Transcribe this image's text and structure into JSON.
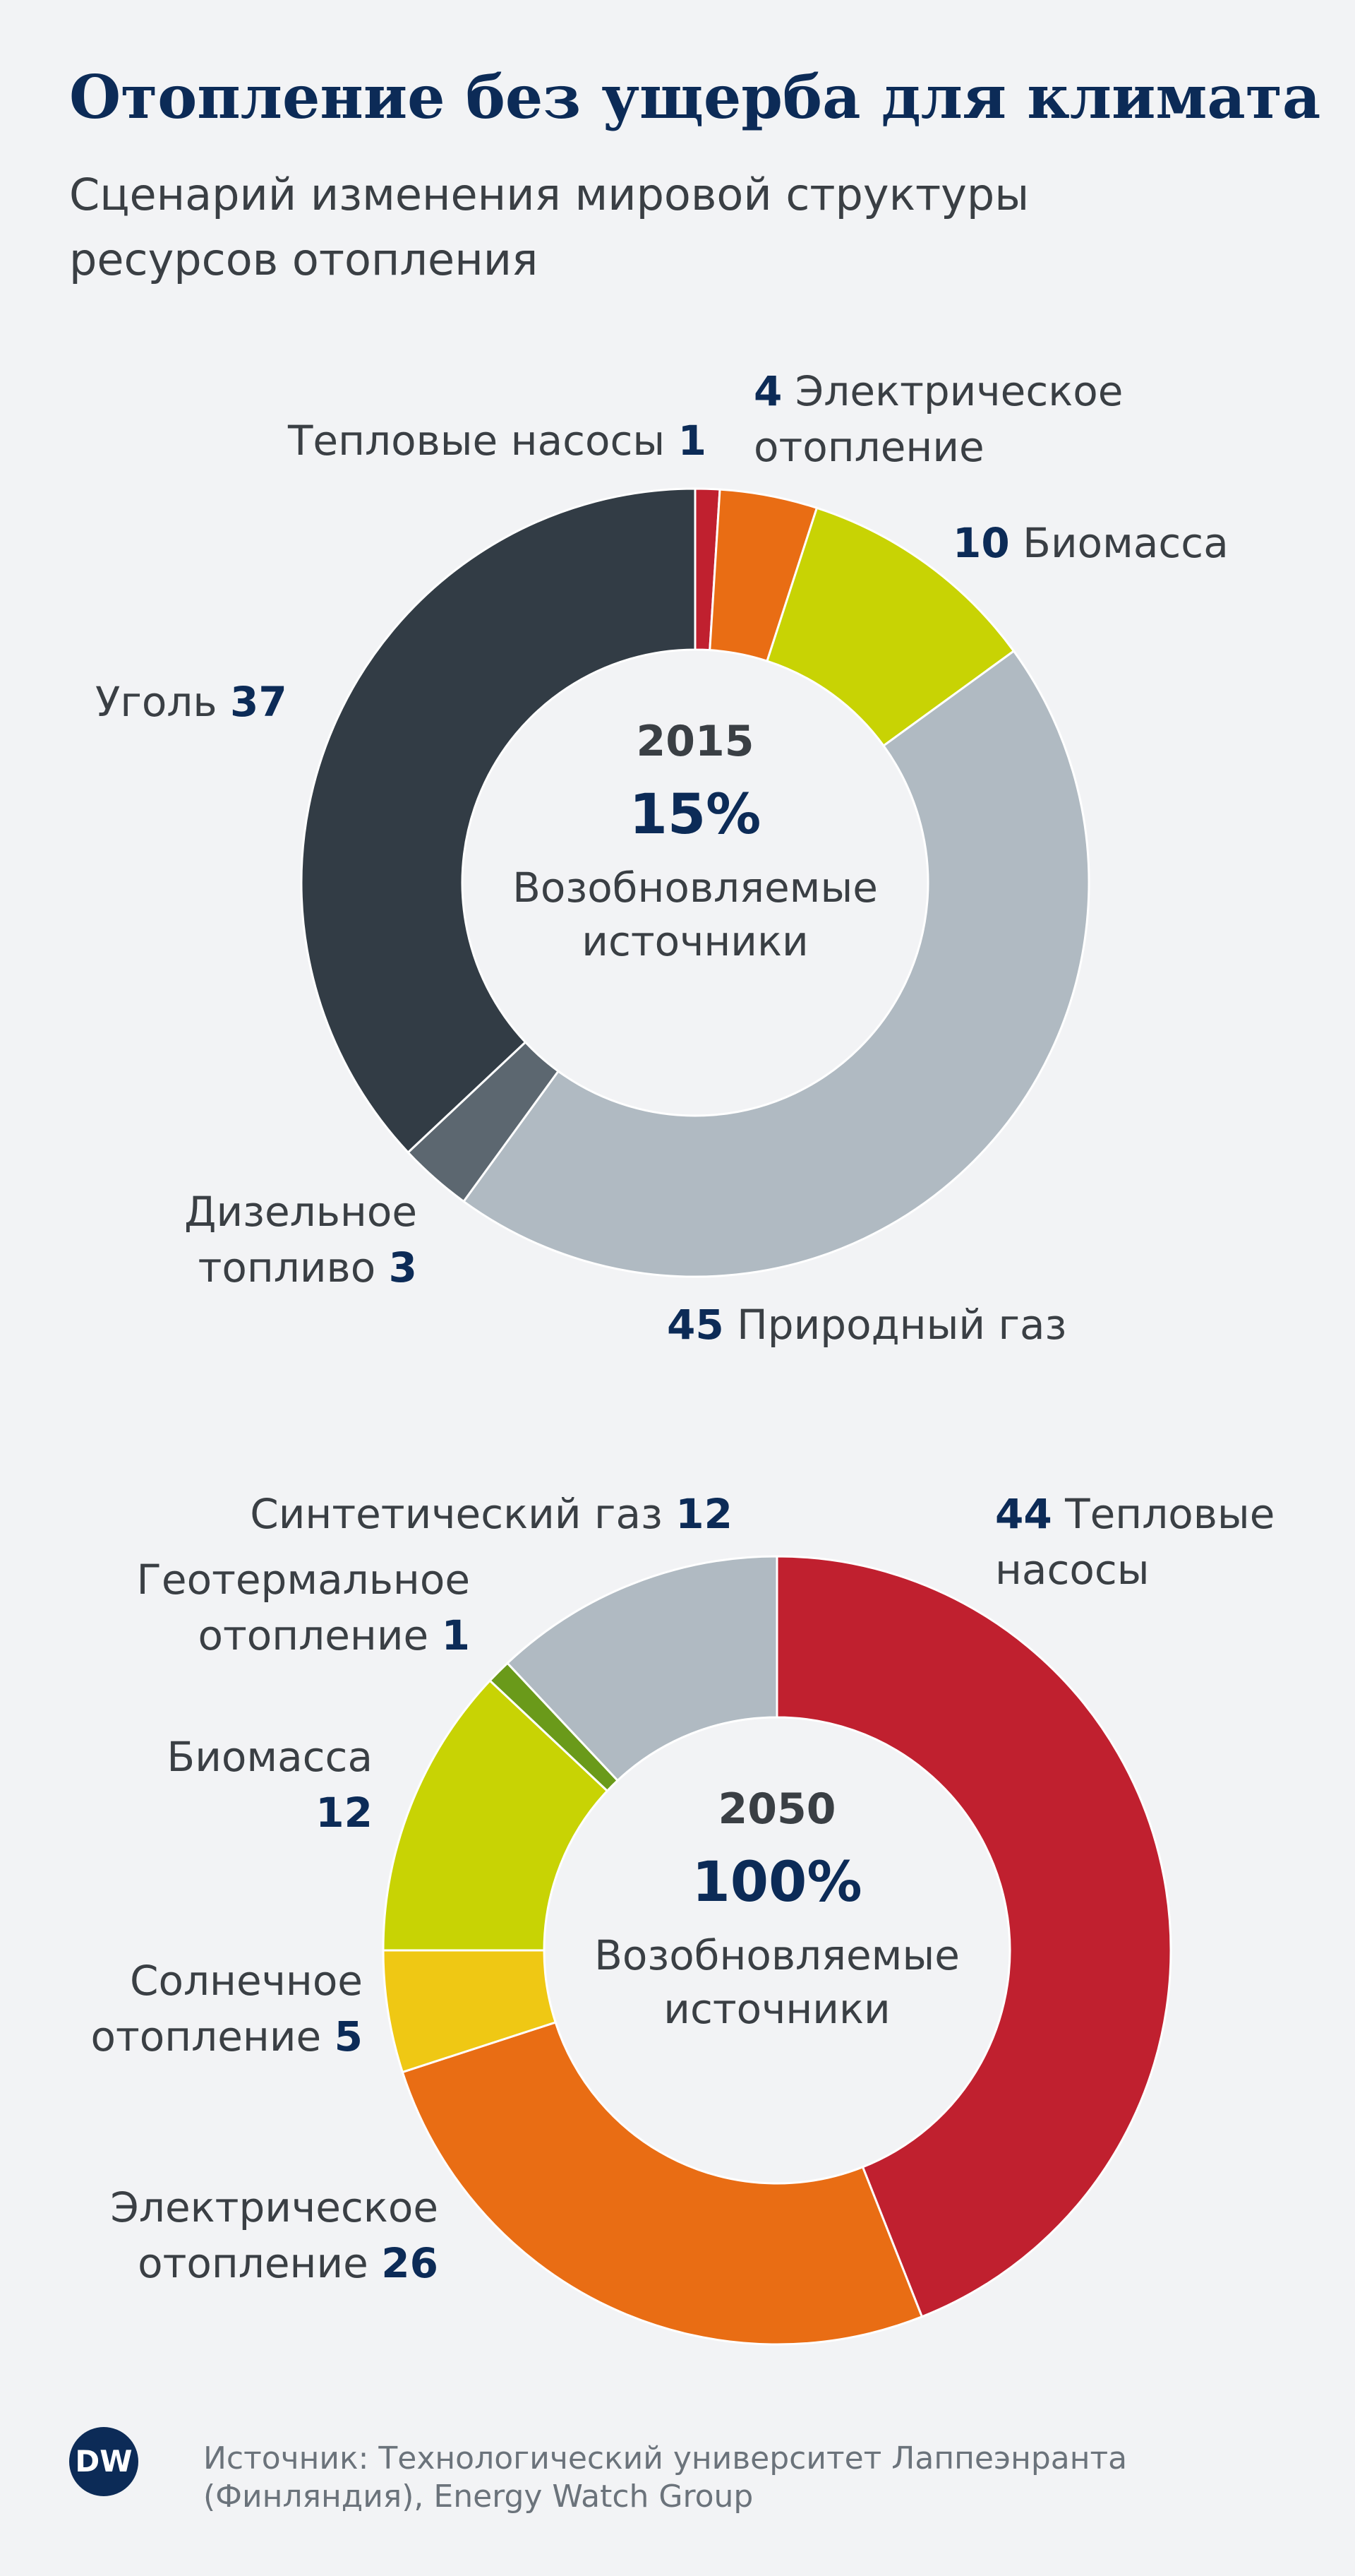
{
  "title": "Отопление без ущерба для климата",
  "subtitle": "Сценарий изменения мировой структуры ресурсов отопления",
  "source": "Источник: Технологический университет Лаппеэнранта (Финляндия), Energy Watch Group",
  "logo": "DW",
  "chart_data": [
    {
      "type": "donut",
      "center_year": "2015",
      "center_share": "15%",
      "center_label": "Возобновляемые источники",
      "categories": [
        "Тепловые насосы",
        "Электрическое отопление",
        "Биомасса",
        "Природный газ",
        "Дизельное топливо",
        "Уголь"
      ],
      "values": [
        1,
        4,
        10,
        45,
        3,
        37
      ],
      "colors": [
        "#c0202f",
        "#e96d14",
        "#c8d304",
        "#b0bac2",
        "#5c6770",
        "#323c45"
      ]
    },
    {
      "type": "donut",
      "center_year": "2050",
      "center_share": "100%",
      "center_label": "Возобновляемые источники",
      "categories": [
        "Тепловые насосы",
        "Электрическое отопление",
        "Солнечное отопление",
        "Биомасса",
        "Геотермальное отопление",
        "Синтетический газ"
      ],
      "values": [
        44,
        26,
        5,
        12,
        1,
        12
      ],
      "colors": [
        "#c0202f",
        "#e96d14",
        "#efc814",
        "#c8d304",
        "#6a9a1a",
        "#b0bac2"
      ]
    }
  ]
}
